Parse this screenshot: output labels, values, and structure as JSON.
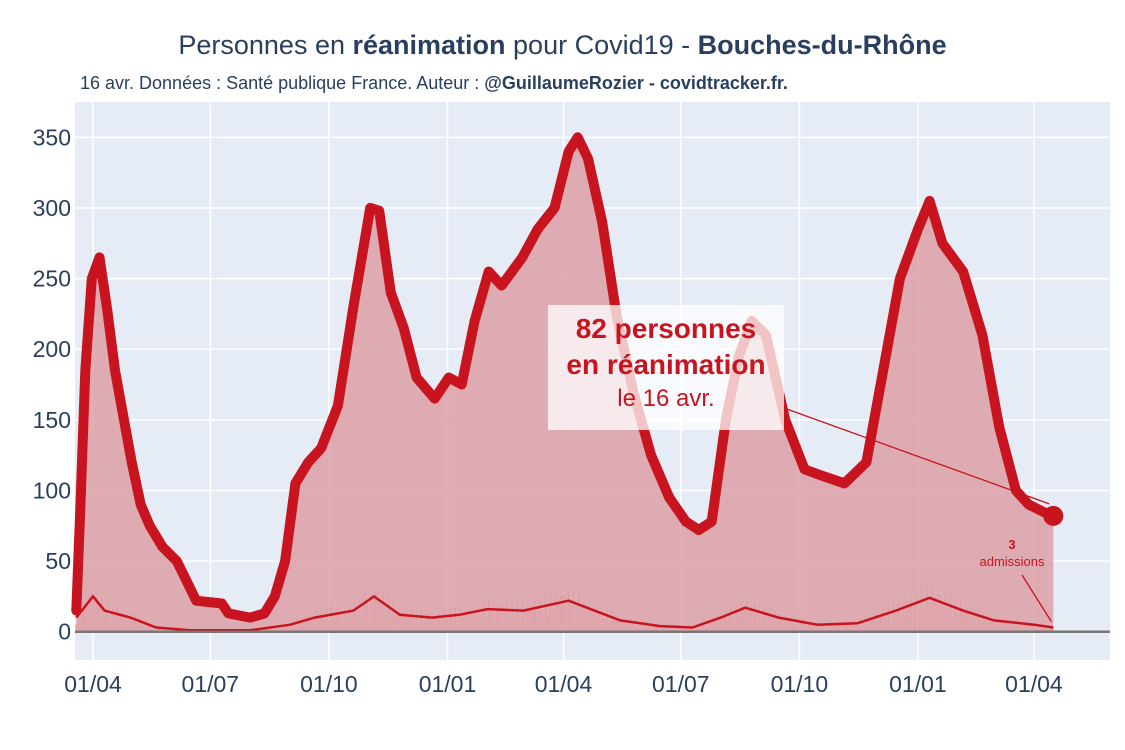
{
  "header": {
    "title_pre": "Personnes en ",
    "title_bold1": "réanimation",
    "title_mid": " pour Covid19 - ",
    "title_bold2": "Bouches-du-Rhône",
    "subtitle_pre": "16 avr. Données : Santé publique France. Auteur : ",
    "subtitle_bold": "@GuillaumeRozier - covidtracker.fr."
  },
  "annotation": {
    "line1": "82 personnes",
    "line2": "en réanimation",
    "line3": "le 16 avr.",
    "admissions_value": "3",
    "admissions_label": "admissions"
  },
  "colors": {
    "line": "#c8141e",
    "fill": "#dea0a6",
    "plot_bg": "#e5ecf6",
    "grid": "#ffffff",
    "text": "#2a3f5f",
    "zero_line": "#777777"
  },
  "chart_data": {
    "type": "area",
    "title": "Personnes en réanimation pour Covid19 - Bouches-du-Rhône",
    "x_ticks": [
      "01/04",
      "01/07",
      "01/10",
      "01/01",
      "01/04",
      "01/07",
      "01/10",
      "01/01",
      "01/04"
    ],
    "x_tick_dates": [
      "2020-04-01",
      "2020-07-01",
      "2020-10-01",
      "2021-01-01",
      "2021-04-01",
      "2021-07-01",
      "2021-10-01",
      "2022-01-01",
      "2022-04-01"
    ],
    "y_ticks": [
      0,
      50,
      100,
      150,
      200,
      250,
      300,
      350
    ],
    "ylim": [
      -20,
      375
    ],
    "xlim": [
      "2020-03-18",
      "2022-05-30"
    ],
    "grid": true,
    "series": [
      {
        "name": "réanimation",
        "points": [
          [
            "2020-03-19",
            15
          ],
          [
            "2020-03-22",
            85
          ],
          [
            "2020-03-26",
            185
          ],
          [
            "2020-03-31",
            250
          ],
          [
            "2020-04-06",
            265
          ],
          [
            "2020-04-12",
            228
          ],
          [
            "2020-04-18",
            185
          ],
          [
            "2020-04-24",
            155
          ],
          [
            "2020-05-01",
            120
          ],
          [
            "2020-05-08",
            90
          ],
          [
            "2020-05-15",
            75
          ],
          [
            "2020-05-25",
            60
          ],
          [
            "2020-06-05",
            50
          ],
          [
            "2020-06-20",
            22
          ],
          [
            "2020-07-10",
            20
          ],
          [
            "2020-07-15",
            13
          ],
          [
            "2020-08-01",
            10
          ],
          [
            "2020-08-12",
            13
          ],
          [
            "2020-08-20",
            25
          ],
          [
            "2020-08-28",
            50
          ],
          [
            "2020-09-05",
            105
          ],
          [
            "2020-09-15",
            120
          ],
          [
            "2020-09-25",
            130
          ],
          [
            "2020-10-08",
            160
          ],
          [
            "2020-10-20",
            230
          ],
          [
            "2020-11-02",
            300
          ],
          [
            "2020-11-09",
            298
          ],
          [
            "2020-11-18",
            240
          ],
          [
            "2020-11-28",
            215
          ],
          [
            "2020-12-08",
            180
          ],
          [
            "2020-12-22",
            165
          ],
          [
            "2021-01-02",
            180
          ],
          [
            "2021-01-12",
            175
          ],
          [
            "2021-01-22",
            220
          ],
          [
            "2021-02-02",
            255
          ],
          [
            "2021-02-12",
            245
          ],
          [
            "2021-02-28",
            265
          ],
          [
            "2021-03-12",
            285
          ],
          [
            "2021-03-25",
            300
          ],
          [
            "2021-04-05",
            340
          ],
          [
            "2021-04-12",
            350
          ],
          [
            "2021-04-20",
            335
          ],
          [
            "2021-05-01",
            290
          ],
          [
            "2021-05-12",
            225
          ],
          [
            "2021-05-25",
            170
          ],
          [
            "2021-06-08",
            125
          ],
          [
            "2021-06-22",
            95
          ],
          [
            "2021-07-05",
            78
          ],
          [
            "2021-07-15",
            72
          ],
          [
            "2021-07-25",
            78
          ],
          [
            "2021-08-05",
            150
          ],
          [
            "2021-08-15",
            195
          ],
          [
            "2021-08-25",
            220
          ],
          [
            "2021-09-05",
            210
          ],
          [
            "2021-09-20",
            150
          ],
          [
            "2021-10-05",
            115
          ],
          [
            "2021-10-20",
            110
          ],
          [
            "2021-11-05",
            105
          ],
          [
            "2021-11-22",
            120
          ],
          [
            "2021-12-05",
            185
          ],
          [
            "2021-12-18",
            250
          ],
          [
            "2022-01-01",
            285
          ],
          [
            "2022-01-10",
            305
          ],
          [
            "2022-01-20",
            275
          ],
          [
            "2022-02-05",
            255
          ],
          [
            "2022-02-20",
            210
          ],
          [
            "2022-03-05",
            145
          ],
          [
            "2022-03-18",
            100
          ],
          [
            "2022-03-28",
            90
          ],
          [
            "2022-04-08",
            85
          ],
          [
            "2022-04-16",
            82
          ]
        ]
      },
      {
        "name": "admissions",
        "points": [
          [
            "2020-03-19",
            10
          ],
          [
            "2020-04-01",
            25
          ],
          [
            "2020-04-10",
            15
          ],
          [
            "2020-04-30",
            10
          ],
          [
            "2020-05-20",
            3
          ],
          [
            "2020-06-15",
            1
          ],
          [
            "2020-08-01",
            1
          ],
          [
            "2020-09-01",
            5
          ],
          [
            "2020-09-20",
            10
          ],
          [
            "2020-10-20",
            15
          ],
          [
            "2020-11-05",
            25
          ],
          [
            "2020-11-25",
            12
          ],
          [
            "2020-12-20",
            10
          ],
          [
            "2021-01-10",
            12
          ],
          [
            "2021-02-01",
            16
          ],
          [
            "2021-03-01",
            15
          ],
          [
            "2021-04-05",
            22
          ],
          [
            "2021-04-25",
            15
          ],
          [
            "2021-05-15",
            8
          ],
          [
            "2021-06-15",
            4
          ],
          [
            "2021-07-10",
            3
          ],
          [
            "2021-08-01",
            10
          ],
          [
            "2021-08-20",
            17
          ],
          [
            "2021-09-15",
            10
          ],
          [
            "2021-10-15",
            5
          ],
          [
            "2021-11-15",
            6
          ],
          [
            "2021-12-15",
            15
          ],
          [
            "2022-01-10",
            24
          ],
          [
            "2022-02-05",
            15
          ],
          [
            "2022-03-01",
            8
          ],
          [
            "2022-04-01",
            5
          ],
          [
            "2022-04-16",
            3
          ]
        ]
      }
    ],
    "last_value": 82,
    "last_date": "2022-04-16",
    "last_admissions": 3
  }
}
